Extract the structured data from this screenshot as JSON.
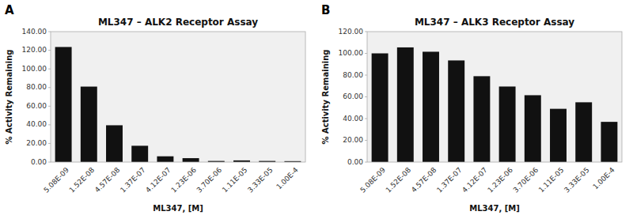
{
  "chart_data": [
    {
      "type": "bar",
      "title": "ML347 – ALK2 Receptor Assay",
      "xlabel": "ML347, [M]",
      "ylabel": "% Activity Remaining",
      "annotations": [
        "A"
      ],
      "categories": [
        "5.08E-09",
        "1.52E-08",
        "4.57E-08",
        "1.37E-07",
        "4.12E-07",
        "1.23E-06",
        "3.70E-06",
        "1.11E-05",
        "3.33E-05",
        "1.00E-4"
      ],
      "values": [
        123.5,
        81.0,
        39.5,
        17.5,
        6.2,
        4.2,
        1.2,
        1.8,
        1.2,
        1.0
      ],
      "color": "#111111",
      "ylim": [
        0,
        140
      ],
      "yticks": [
        {
          "value": 0,
          "label": "0.00"
        },
        {
          "value": 20,
          "label": "20.00"
        },
        {
          "value": 40,
          "label": "40.00"
        },
        {
          "value": 60,
          "label": "60.00"
        },
        {
          "value": 80,
          "label": "80.00"
        },
        {
          "value": 100,
          "label": "100.00"
        },
        {
          "value": 120,
          "label": "120.00"
        },
        {
          "value": 140,
          "label": "140.00"
        }
      ],
      "grid": false
    },
    {
      "type": "bar",
      "title": "ML347 – ALK3 Receptor Assay",
      "xlabel": "ML347, [M]",
      "ylabel": "% Activity Remaining",
      "annotations": [
        "B"
      ],
      "categories": [
        "5.08E-09",
        "1.52E-08",
        "4.57E-08",
        "1.37E-07",
        "4.12E-07",
        "1.23E-06",
        "3.70E-06",
        "1.11E-05",
        "3.33E-05",
        "1.00E-4"
      ],
      "values": [
        100.0,
        105.5,
        101.5,
        93.5,
        79.0,
        69.5,
        61.5,
        49.0,
        55.0,
        37.0
      ],
      "color": "#111111",
      "ylim": [
        0,
        120
      ],
      "yticks": [
        {
          "value": 0,
          "label": "0.00"
        },
        {
          "value": 20,
          "label": "20.00"
        },
        {
          "value": 40,
          "label": "40.00"
        },
        {
          "value": 60,
          "label": "60.00"
        },
        {
          "value": 80,
          "label": "80.00"
        },
        {
          "value": 100,
          "label": "100.00"
        },
        {
          "value": 120,
          "label": "120.00"
        }
      ],
      "grid": false
    }
  ]
}
